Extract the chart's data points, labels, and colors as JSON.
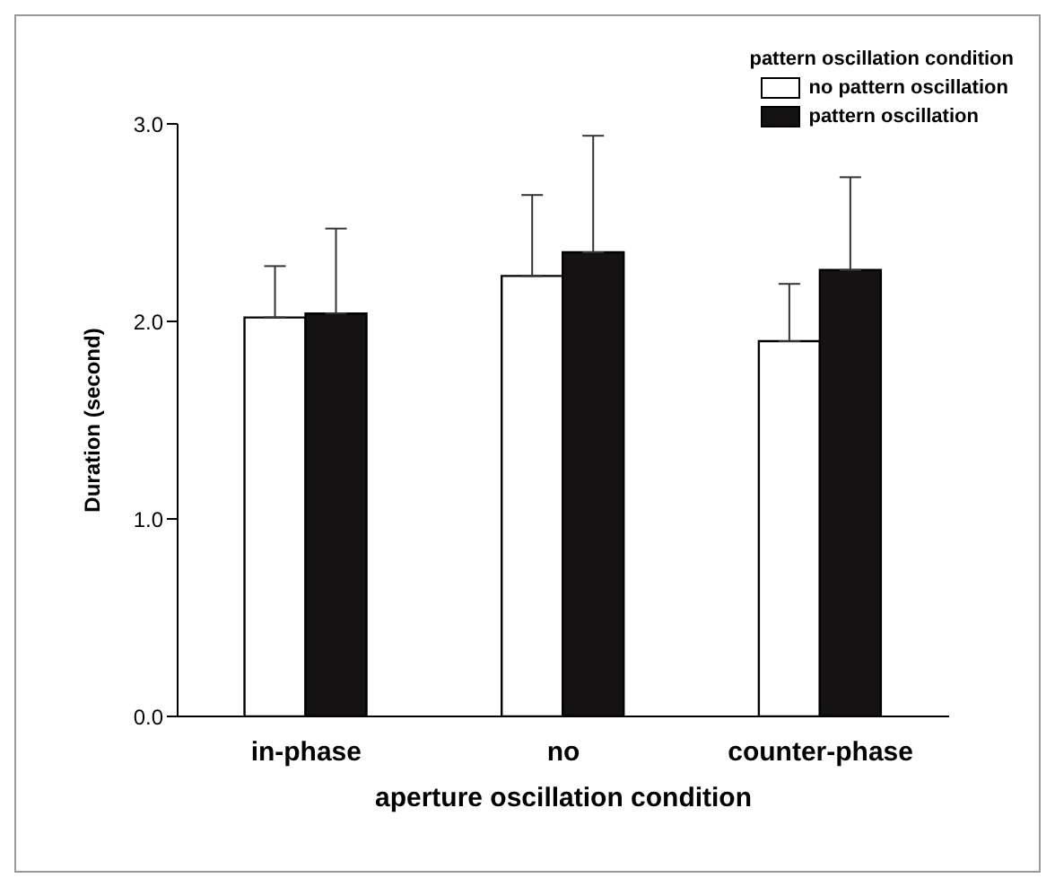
{
  "chart_data": {
    "type": "bar",
    "xlabel": "aperture oscillation condition",
    "ylabel": "Duration (second)",
    "legend_title": "pattern oscillation condition",
    "categories": [
      "in-phase",
      "no",
      "counter-phase"
    ],
    "series": [
      {
        "name": "no pattern oscillation",
        "color": "#ffffff",
        "values": [
          2.02,
          2.23,
          1.9
        ],
        "errors": [
          [
            2.02,
            2.28
          ],
          [
            2.23,
            2.64
          ],
          [
            1.9,
            2.19
          ]
        ]
      },
      {
        "name": "pattern oscillation",
        "color": "#141212",
        "values": [
          2.04,
          2.35,
          2.26
        ],
        "errors": [
          [
            2.04,
            2.47
          ],
          [
            2.35,
            2.94
          ],
          [
            2.26,
            2.73
          ]
        ]
      }
    ],
    "ylim": [
      0,
      3
    ],
    "yticks": [
      {
        "value": 0,
        "label": "0.0"
      },
      {
        "value": 1,
        "label": "1.0"
      },
      {
        "value": 2,
        "label": "2.0"
      },
      {
        "value": 3,
        "label": "3.0"
      }
    ],
    "grid": false,
    "legend": "top right"
  }
}
